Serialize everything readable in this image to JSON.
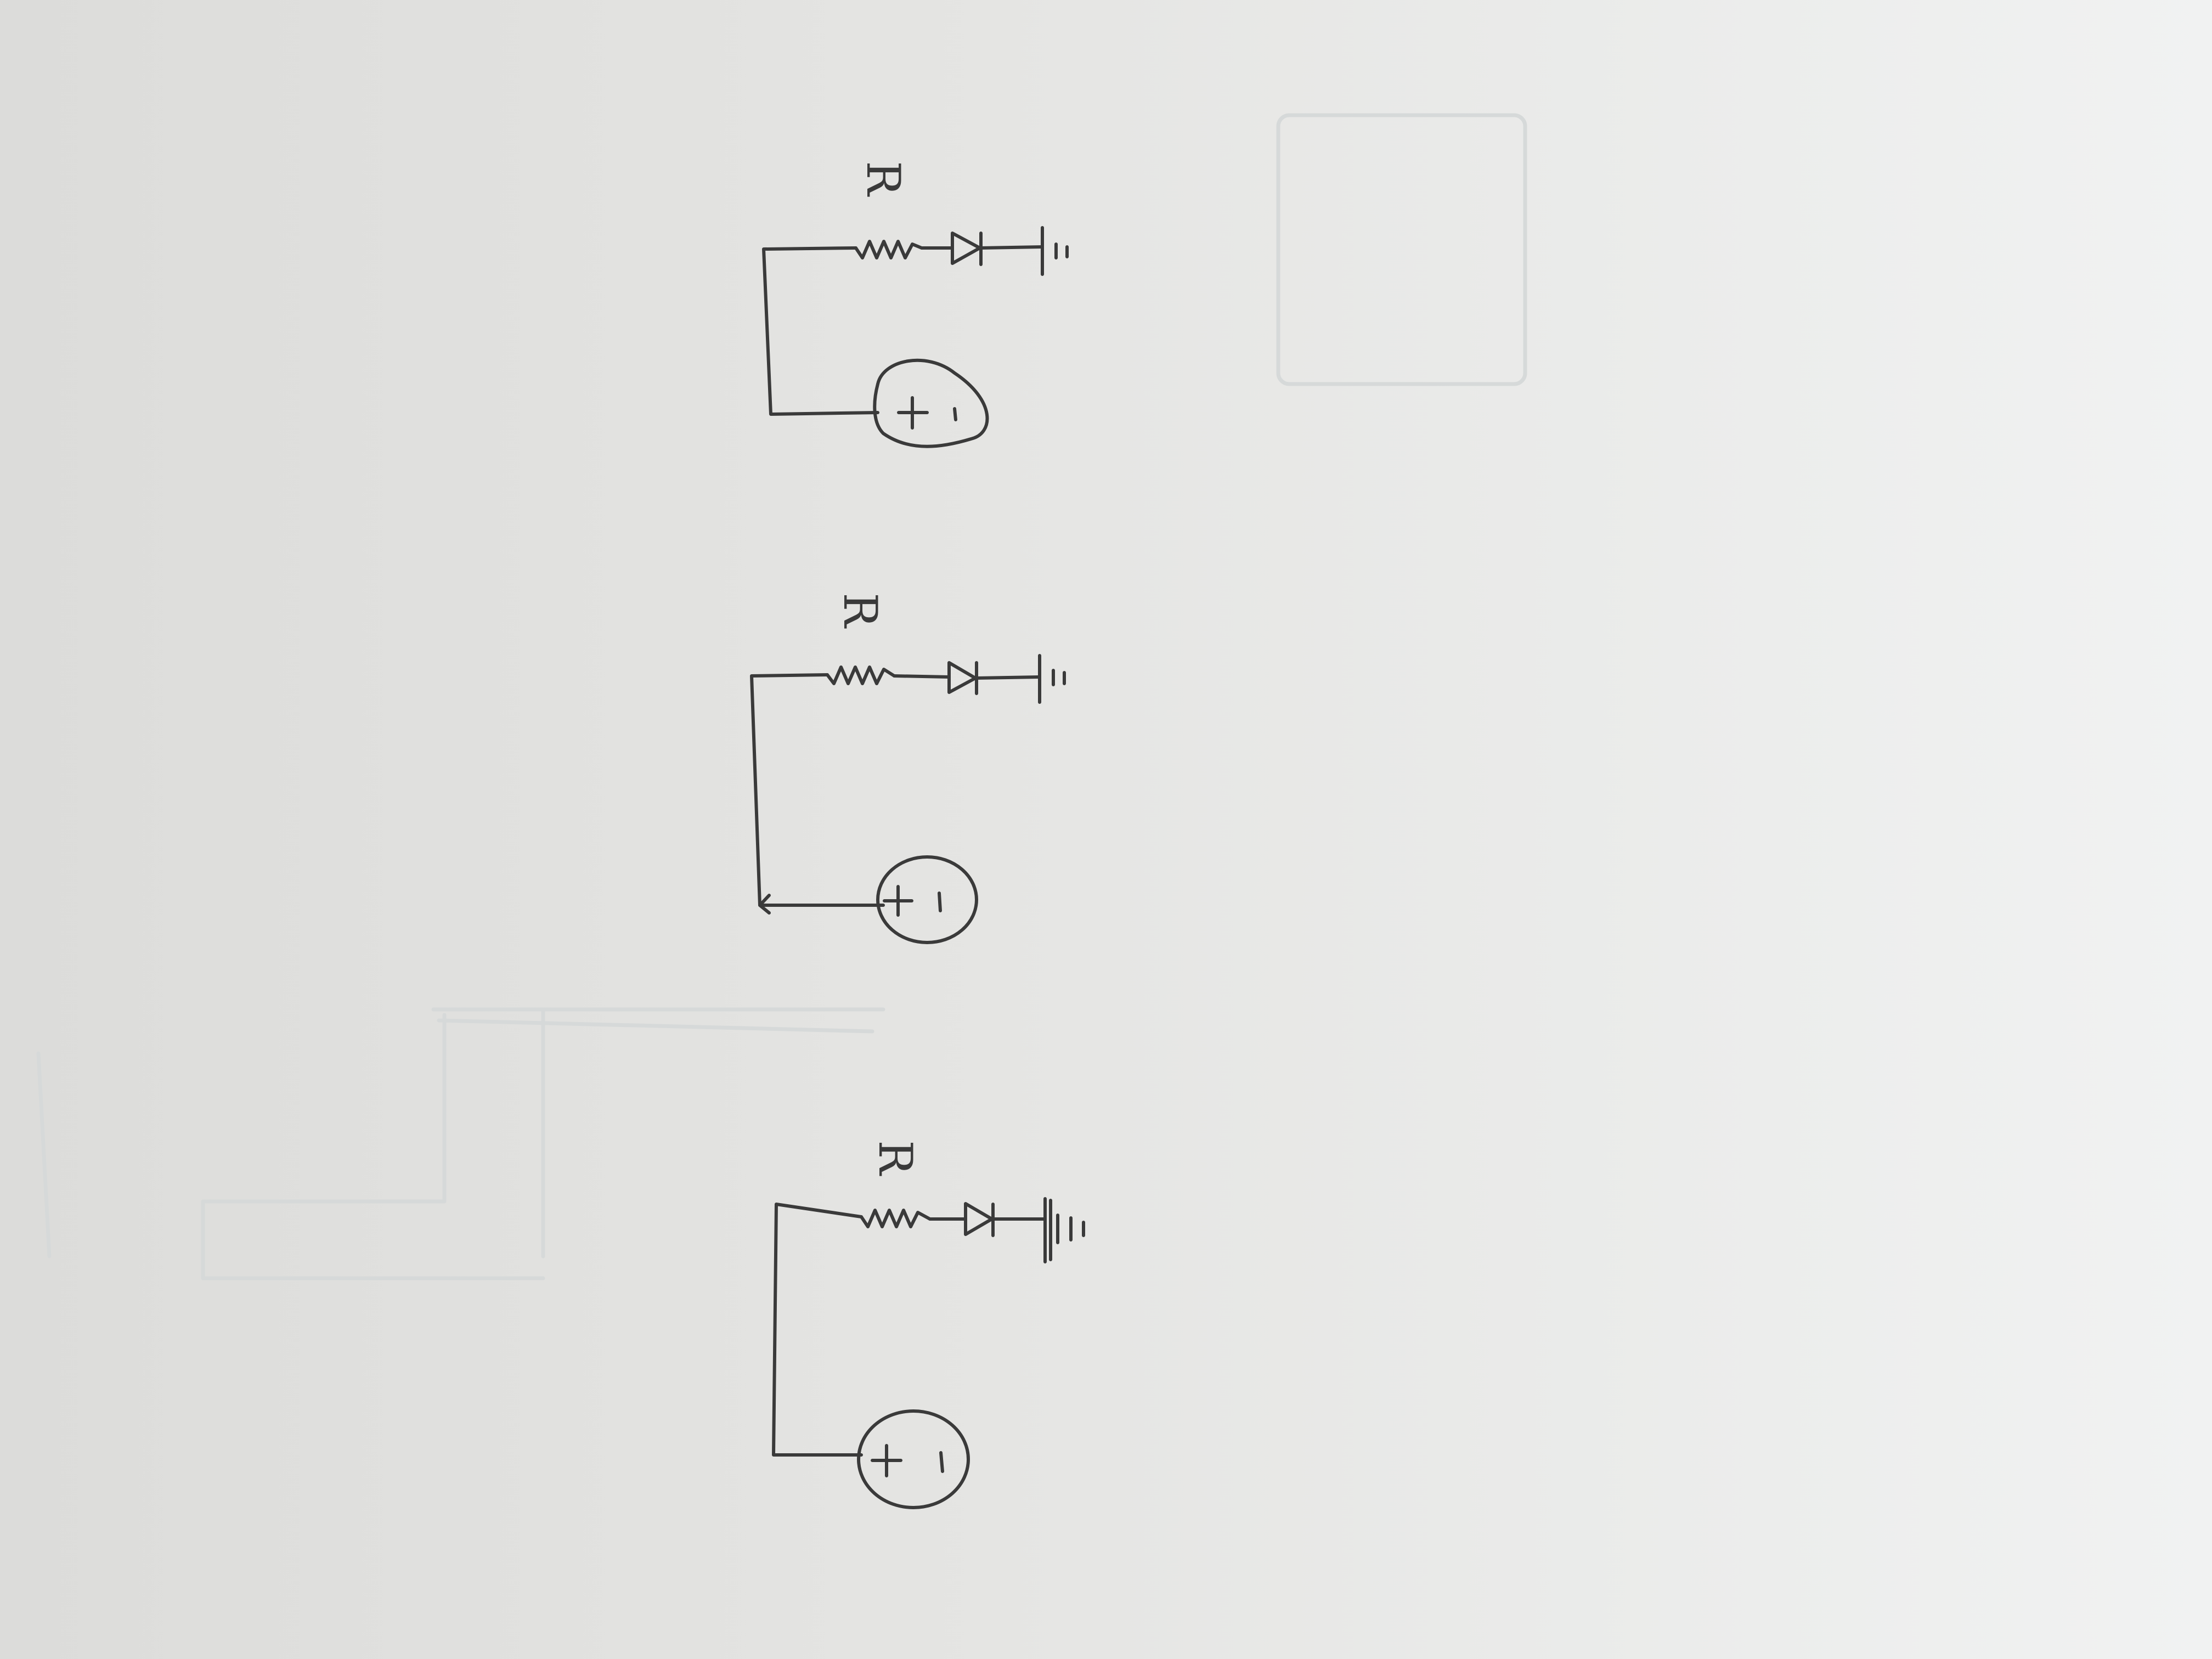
{
  "sheet": {
    "background_color": "#e3e3e1",
    "ink_color": "#3a3a3a",
    "bleed_through_color": "#d6d9d9"
  },
  "circuits": [
    {
      "position": "top",
      "resistor_label": "R",
      "components": [
        "battery",
        "resistor",
        "diode",
        "ground"
      ]
    },
    {
      "position": "middle",
      "resistor_label": "R",
      "components": [
        "battery",
        "resistor",
        "diode",
        "ground"
      ]
    },
    {
      "position": "bottom",
      "resistor_label": "R",
      "components": [
        "battery",
        "resistor",
        "diode",
        "ground"
      ]
    }
  ]
}
